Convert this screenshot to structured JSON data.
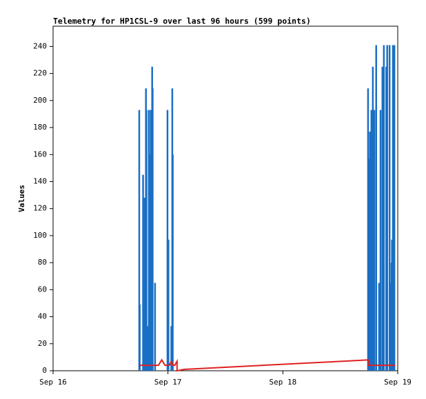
{
  "chart_data": {
    "type": "impulse-line",
    "title": "Telemetry for HP1CSL-9 over last 96 hours (599 points)",
    "y_label": "Values",
    "xlim": [
      0,
      72
    ],
    "xticks": [
      {
        "value": 0,
        "label": "Sep 16"
      },
      {
        "value": 24,
        "label": "Sep 17"
      },
      {
        "value": 48,
        "label": "Sep 18"
      },
      {
        "value": 72,
        "label": "Sep 19"
      }
    ],
    "ylim": [
      0,
      255
    ],
    "yticks": [
      0,
      20,
      40,
      60,
      80,
      100,
      120,
      140,
      160,
      180,
      200,
      220,
      240
    ],
    "grid": false,
    "series": [
      {
        "color": "#1a6fc4",
        "style": "impulse",
        "x": [
          18.0,
          18.1,
          18.8,
          19.1,
          19.3,
          19.4,
          19.5,
          19.8,
          20.0,
          20.1,
          20.3,
          20.4,
          20.7,
          20.8,
          21.3,
          23.9,
          24.1,
          24.7,
          24.9,
          25.0,
          65.8,
          66.1,
          66.2,
          66.5,
          66.8,
          67.1,
          67.5,
          68.1,
          68.4,
          68.8,
          69.1,
          69.6,
          69.8,
          70.3,
          70.4,
          70.7,
          70.8,
          71.0,
          71.3
        ],
        "values": [
          193,
          49,
          145,
          128,
          65,
          209,
          193,
          33,
          193,
          97,
          160,
          193,
          225,
          209,
          65,
          193,
          97,
          33,
          209,
          160,
          209,
          157,
          177,
          193,
          225,
          193,
          241,
          65,
          193,
          225,
          241,
          225,
          241,
          241,
          65,
          80,
          97,
          241,
          241
        ]
      },
      {
        "color": "#e02020",
        "style": "line",
        "x": [
          18.0,
          21.3,
          22.0,
          22.7,
          23.4,
          24.3,
          24.7,
          25.0,
          25.4,
          25.9,
          25.9,
          27.4,
          65.8,
          65.9,
          71.5
        ],
        "values": [
          4,
          4,
          4,
          8,
          4,
          4,
          7,
          4,
          4,
          7,
          0,
          1,
          8,
          4,
          4
        ]
      }
    ]
  }
}
